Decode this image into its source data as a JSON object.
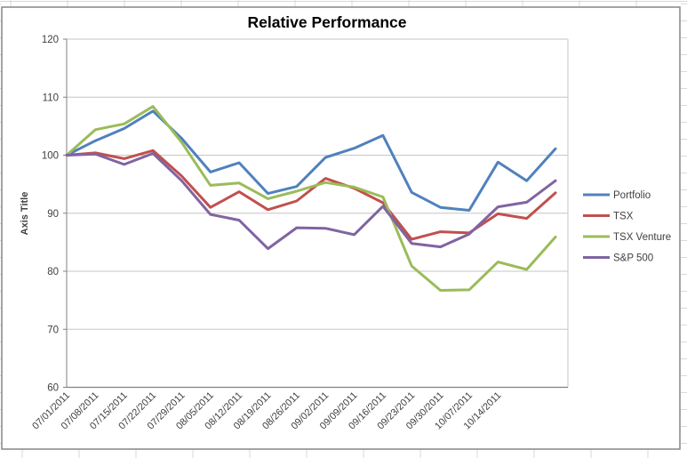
{
  "chart_data": {
    "type": "line",
    "title": "Relative Performance",
    "y_axis_title": "Axis Title",
    "categories": [
      "07/01/2011",
      "07/08/2011",
      "07/15/2011",
      "07/22/2011",
      "07/29/2011",
      "08/05/2011",
      "08/12/2011",
      "08/19/2011",
      "08/26/2011",
      "09/02/2011",
      "09/09/2011",
      "09/16/2011",
      "09/23/2011",
      "09/30/2011",
      "10/07/2011",
      "10/14/2011"
    ],
    "y_ticks": [
      "60",
      "70",
      "80",
      "90",
      "100",
      "110",
      "120"
    ],
    "ylim": [
      60,
      120
    ],
    "y_tick_step": 10,
    "grid": true,
    "legend_position": "right",
    "unlabeled_trailing_points": 2,
    "series": [
      {
        "name": "Portfolio",
        "color": "#4F81BD",
        "values": [
          100,
          102.5,
          104.6,
          107.6,
          102.9,
          97.1,
          98.7,
          93.4,
          94.6,
          99.6,
          101.2,
          103.4,
          93.6,
          91.0,
          90.5,
          98.8,
          95.6,
          101.1
        ]
      },
      {
        "name": "TSX",
        "color": "#C0504D",
        "values": [
          100,
          100.4,
          99.4,
          100.8,
          96.4,
          91.0,
          93.7,
          90.6,
          92.1,
          96.0,
          94.3,
          91.8,
          85.5,
          86.8,
          86.6,
          89.9,
          89.1,
          93.5
        ]
      },
      {
        "name": "TSX Venture",
        "color": "#9BBB59",
        "values": [
          100,
          104.4,
          105.4,
          108.4,
          102.2,
          94.8,
          95.2,
          92.5,
          93.8,
          95.3,
          94.5,
          92.8,
          80.9,
          76.7,
          76.8,
          81.6,
          80.3,
          85.9
        ]
      },
      {
        "name": "S&P 500",
        "color": "#8064A2",
        "values": [
          100,
          100.2,
          98.4,
          100.3,
          95.6,
          89.8,
          88.8,
          83.9,
          87.5,
          87.4,
          86.3,
          91.2,
          84.8,
          84.2,
          86.4,
          91.1,
          91.9,
          95.6
        ]
      }
    ],
    "colors": {
      "gridline": "#c6c6c6",
      "axis_line": "#808080",
      "frame_border": "#8e8e8e",
      "worksheet_gridline": "#d9d9d9",
      "text": "#404040",
      "title_text": "#000000"
    }
  }
}
